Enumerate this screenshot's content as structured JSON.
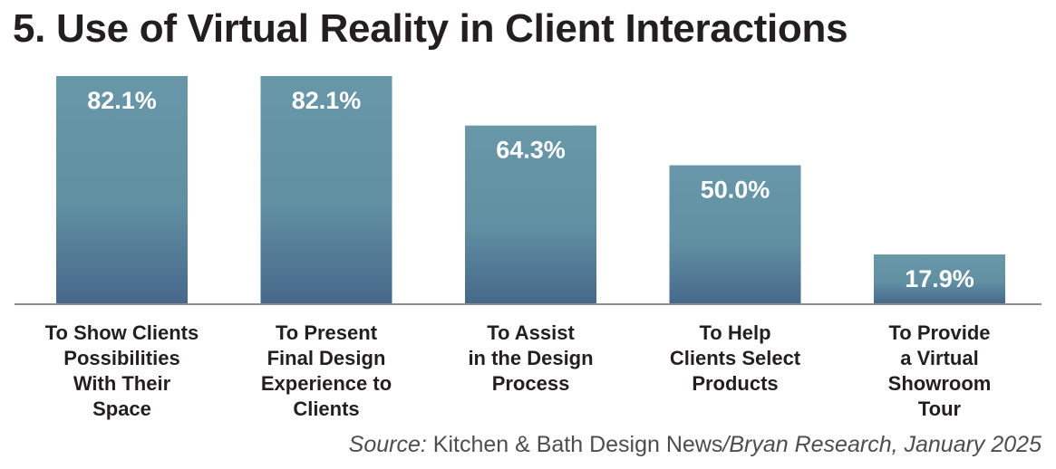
{
  "title": "5. Use of Virtual Reality in Client Interactions",
  "source": {
    "prefix": "Source:",
    "publication": " Kitchen & Bath Design News",
    "separator": "/",
    "rest": "Bryan Research, January 2025"
  },
  "colors": {
    "bar_top": "#6897a8",
    "bar_bottom": "#46688a",
    "axis": "#8c8c8c",
    "text": "#231f20"
  },
  "chart_data": {
    "type": "bar",
    "title": "5. Use of Virtual Reality in Client Interactions",
    "categories": [
      [
        "To Show Clients",
        "Possibilities",
        "With Their",
        "Space"
      ],
      [
        "To Present",
        "Final Design",
        "Experience to",
        "Clients"
      ],
      [
        "To Assist",
        "in the Design",
        "Process"
      ],
      [
        "To Help",
        "Clients Select",
        "Products"
      ],
      [
        "To Provide",
        "a Virtual",
        "Showroom",
        "Tour"
      ]
    ],
    "values": [
      82.1,
      82.1,
      64.3,
      50.0,
      17.9
    ],
    "value_labels": [
      "82.1%",
      "82.1%",
      "64.3%",
      "50.0%",
      "17.9%"
    ],
    "unit": "%",
    "ylim": [
      0,
      82.1
    ],
    "grid": false,
    "legend": "none"
  }
}
